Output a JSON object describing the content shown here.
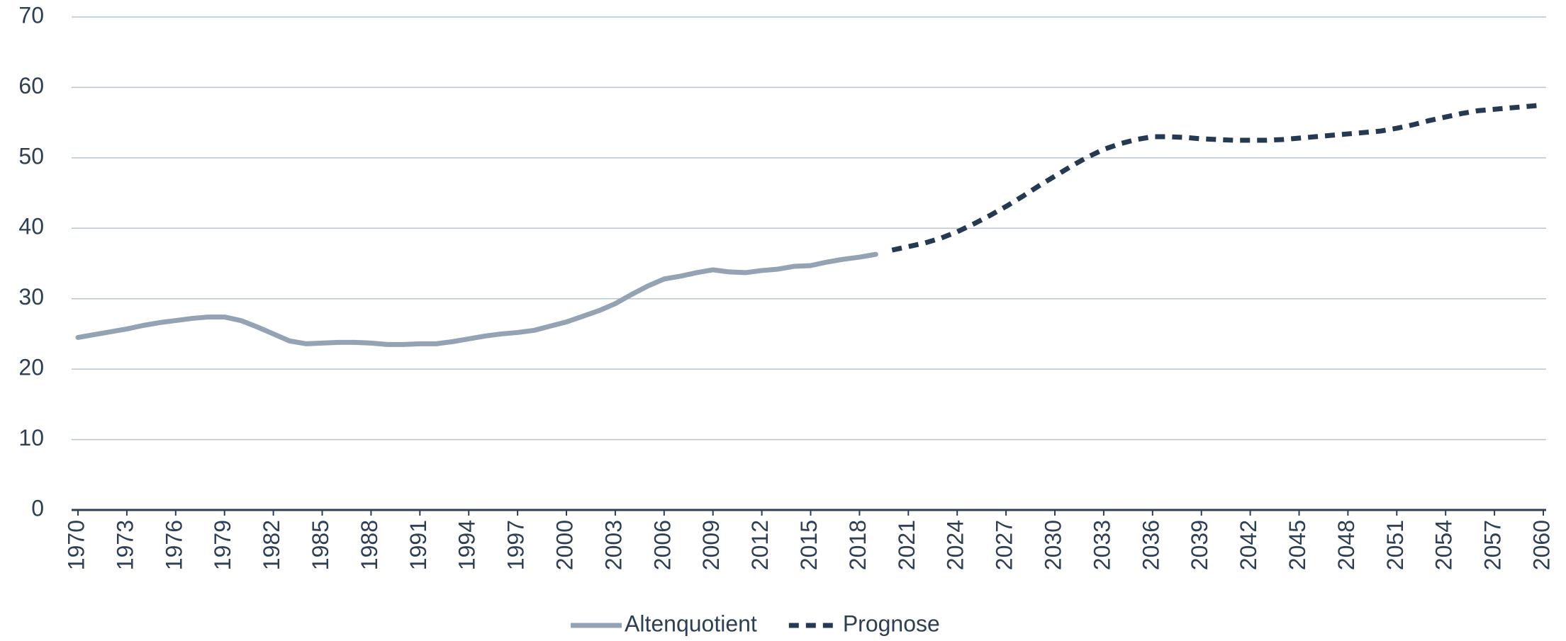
{
  "chart_data": {
    "type": "line",
    "x": [
      1970,
      1971,
      1972,
      1973,
      1974,
      1975,
      1976,
      1977,
      1978,
      1979,
      1980,
      1981,
      1982,
      1983,
      1984,
      1985,
      1986,
      1987,
      1988,
      1989,
      1990,
      1991,
      1992,
      1993,
      1994,
      1995,
      1996,
      1997,
      1998,
      1999,
      2000,
      2001,
      2002,
      2003,
      2004,
      2005,
      2006,
      2007,
      2008,
      2009,
      2010,
      2011,
      2012,
      2013,
      2014,
      2015,
      2016,
      2017,
      2018,
      2019,
      2020,
      2021,
      2022,
      2023,
      2024,
      2025,
      2026,
      2027,
      2028,
      2029,
      2030,
      2031,
      2032,
      2033,
      2034,
      2035,
      2036,
      2037,
      2038,
      2039,
      2040,
      2041,
      2042,
      2043,
      2044,
      2045,
      2046,
      2047,
      2048,
      2049,
      2050,
      2051,
      2052,
      2053,
      2054,
      2055,
      2056,
      2057,
      2058,
      2059,
      2060
    ],
    "series": [
      {
        "name": "Altenquotient",
        "color": "#94a3b4",
        "dashed": false,
        "values": [
          24.5,
          24.9,
          25.3,
          25.7,
          26.2,
          26.6,
          26.9,
          27.2,
          27.4,
          27.4,
          26.9,
          26.0,
          25.0,
          24.0,
          23.6,
          23.7,
          23.8,
          23.8,
          23.7,
          23.5,
          23.5,
          23.6,
          23.6,
          23.9,
          24.3,
          24.7,
          25.0,
          25.2,
          25.5,
          26.1,
          26.7,
          27.5,
          28.3,
          29.3,
          30.6,
          31.8,
          32.8,
          33.2,
          33.7,
          34.1,
          33.8,
          33.7,
          34.0,
          34.2,
          34.6,
          34.7,
          35.2,
          35.6,
          35.9,
          36.3,
          null,
          null,
          null,
          null,
          null,
          null,
          null,
          null,
          null,
          null,
          null,
          null,
          null,
          null,
          null,
          null,
          null,
          null,
          null,
          null,
          null,
          null,
          null,
          null,
          null,
          null,
          null,
          null,
          null,
          null,
          null,
          null,
          null,
          null,
          null,
          null,
          null,
          null,
          null,
          null,
          null
        ]
      },
      {
        "name": "Prognose",
        "color": "#253a52",
        "dashed": true,
        "values": [
          null,
          null,
          null,
          null,
          null,
          null,
          null,
          null,
          null,
          null,
          null,
          null,
          null,
          null,
          null,
          null,
          null,
          null,
          null,
          null,
          null,
          null,
          null,
          null,
          null,
          null,
          null,
          null,
          null,
          null,
          null,
          null,
          null,
          null,
          null,
          null,
          null,
          null,
          null,
          null,
          null,
          null,
          null,
          null,
          null,
          null,
          null,
          null,
          null,
          null,
          36.9,
          37.4,
          37.9,
          38.6,
          39.5,
          40.6,
          41.8,
          43.1,
          44.5,
          46.0,
          47.4,
          48.8,
          50.1,
          51.2,
          52.0,
          52.6,
          53.0,
          53.0,
          52.9,
          52.7,
          52.6,
          52.5,
          52.5,
          52.5,
          52.6,
          52.8,
          53.0,
          53.2,
          53.4,
          53.6,
          53.8,
          54.2,
          54.7,
          55.3,
          55.8,
          56.3,
          56.7,
          56.9,
          57.1,
          57.3,
          57.5
        ]
      }
    ],
    "xlim": [
      1970,
      2060
    ],
    "xticks": [
      1970,
      1973,
      1976,
      1979,
      1982,
      1985,
      1988,
      1991,
      1994,
      1997,
      2000,
      2003,
      2006,
      2009,
      2012,
      2015,
      2018,
      2021,
      2024,
      2027,
      2030,
      2033,
      2036,
      2039,
      2042,
      2045,
      2048,
      2051,
      2054,
      2057,
      2060
    ],
    "ylim": [
      0,
      70
    ],
    "yticks": [
      0,
      10,
      20,
      30,
      40,
      50,
      60,
      70
    ],
    "grid": true,
    "legend": "bottom"
  }
}
